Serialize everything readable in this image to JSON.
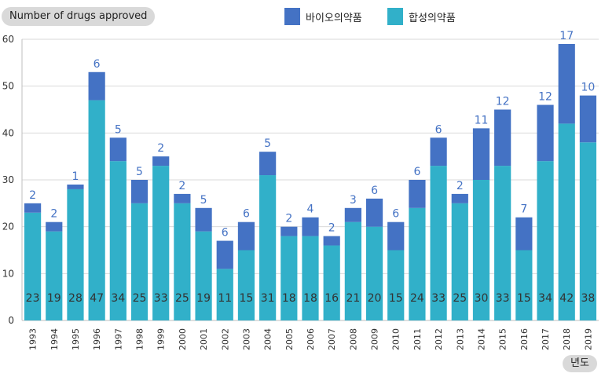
{
  "chart_data": {
    "type": "bar",
    "stacked": true,
    "ylabel": "Number of drugs approved",
    "xlabel": "년도",
    "ylim": [
      0,
      60
    ],
    "yticks": [
      0,
      10,
      20,
      30,
      40,
      50,
      60
    ],
    "grid": true,
    "legend_position": "top",
    "categories": [
      "1993",
      "1994",
      "1995",
      "1996",
      "1997",
      "1998",
      "1999",
      "2000",
      "2001",
      "2002",
      "2003",
      "2004",
      "2005",
      "2006",
      "2007",
      "2008",
      "2009",
      "2010",
      "2011",
      "2012",
      "2013",
      "2014",
      "2015",
      "2016",
      "2017",
      "2018",
      "2019"
    ],
    "series": [
      {
        "name": "합성의약품",
        "color": "#31b0c9",
        "values": [
          23,
          19,
          28,
          47,
          34,
          25,
          33,
          25,
          19,
          11,
          15,
          31,
          18,
          18,
          16,
          21,
          20,
          15,
          24,
          33,
          25,
          30,
          33,
          15,
          34,
          42,
          38
        ]
      },
      {
        "name": "바이오의약품",
        "color": "#4472c4",
        "values": [
          2,
          2,
          1,
          6,
          5,
          5,
          2,
          2,
          5,
          6,
          6,
          5,
          2,
          4,
          2,
          3,
          6,
          6,
          6,
          6,
          2,
          11,
          12,
          7,
          12,
          17,
          10
        ]
      }
    ],
    "legend_order": [
      "바이오의약품",
      "합성의약품"
    ]
  }
}
